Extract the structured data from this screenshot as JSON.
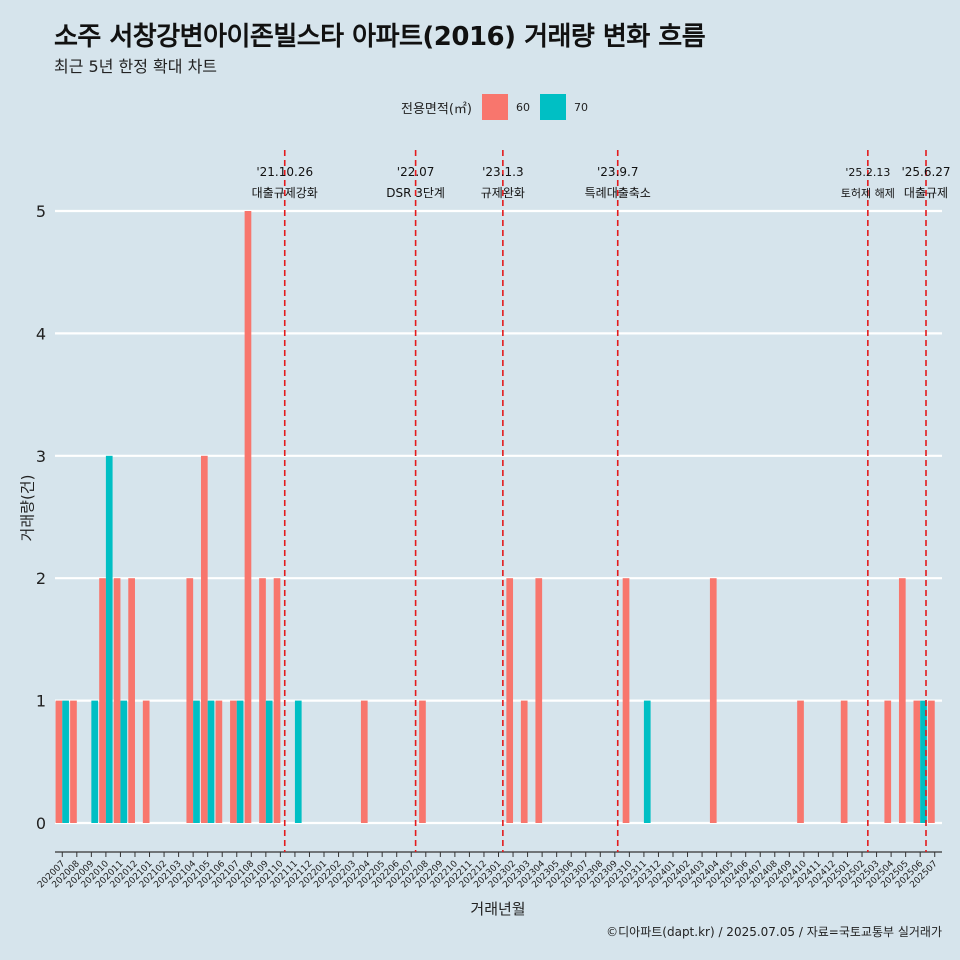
{
  "title": "소주 서창강변아이존빌스타 아파트(2016) 거래량 변화 흐름",
  "subtitle": "최근 5년 한정 확대 차트",
  "caption": "©디아파트(dapt.kr) / 2025.07.05 / 자료=국토교통부 실거래가",
  "colors": {
    "background": "#d6e4ec",
    "s60": "#f8766d",
    "s70": "#00bfc4",
    "event_line": "#e31a1c"
  },
  "chart_data": {
    "type": "bar",
    "title": "소주 서창강변아이존빌스타 아파트(2016) 거래량 변화 흐름",
    "subtitle": "최근 5년 한정 확대 차트",
    "xlabel": "거래년월",
    "ylabel": "거래량(건)",
    "ylim": [
      0,
      5
    ],
    "yticks": [
      0,
      1,
      2,
      3,
      4,
      5
    ],
    "legend_title": "전용면적(㎡)",
    "legend_position": "top",
    "categories": [
      "202007",
      "202008",
      "202009",
      "202010",
      "202011",
      "202012",
      "202101",
      "202102",
      "202103",
      "202104",
      "202105",
      "202106",
      "202107",
      "202108",
      "202109",
      "202110",
      "202111",
      "202112",
      "202201",
      "202202",
      "202203",
      "202204",
      "202205",
      "202206",
      "202207",
      "202208",
      "202209",
      "202210",
      "202211",
      "202212",
      "202301",
      "202302",
      "202303",
      "202304",
      "202305",
      "202306",
      "202307",
      "202308",
      "202309",
      "202310",
      "202311",
      "202312",
      "202401",
      "202402",
      "202403",
      "202404",
      "202405",
      "202406",
      "202407",
      "202408",
      "202409",
      "202410",
      "202411",
      "202412",
      "202501",
      "202502",
      "202503",
      "202504",
      "202505",
      "202506",
      "202507"
    ],
    "series": [
      {
        "name": "60",
        "values": [
          1,
          1,
          0,
          2,
          2,
          2,
          1,
          0,
          0,
          2,
          3,
          1,
          1,
          5,
          2,
          2,
          0,
          0,
          0,
          0,
          0,
          1,
          0,
          0,
          0,
          1,
          0,
          0,
          0,
          0,
          0,
          2,
          1,
          2,
          0,
          0,
          0,
          0,
          0,
          2,
          0,
          0,
          0,
          0,
          0,
          2,
          0,
          0,
          0,
          0,
          0,
          1,
          0,
          0,
          1,
          0,
          0,
          1,
          2,
          1,
          1
        ]
      },
      {
        "name": "70",
        "values": [
          1,
          0,
          1,
          3,
          1,
          0,
          0,
          0,
          0,
          1,
          1,
          0,
          1,
          0,
          1,
          0,
          1,
          0,
          0,
          0,
          0,
          0,
          0,
          0,
          0,
          0,
          0,
          0,
          0,
          0,
          0,
          0,
          0,
          0,
          0,
          0,
          0,
          0,
          0,
          0,
          1,
          0,
          0,
          0,
          0,
          0,
          0,
          0,
          0,
          0,
          0,
          0,
          0,
          0,
          0,
          0,
          0,
          0,
          0,
          1,
          0
        ]
      }
    ],
    "events": [
      {
        "index": 15.3,
        "date": "'21.10.26",
        "label": "대출규제강화"
      },
      {
        "index": 24.3,
        "date": "'22.07",
        "label": "DSR 3단계"
      },
      {
        "index": 30.3,
        "date": "'23.1.3",
        "label": "규제완화"
      },
      {
        "index": 38.2,
        "date": "'23.9.7",
        "label": "특례대출축소"
      },
      {
        "index": 55.4,
        "date": "'25.2.13",
        "label": "토허제 해제"
      },
      {
        "index": 59.4,
        "date": "'25.6.27",
        "label": "대출규제"
      }
    ]
  }
}
